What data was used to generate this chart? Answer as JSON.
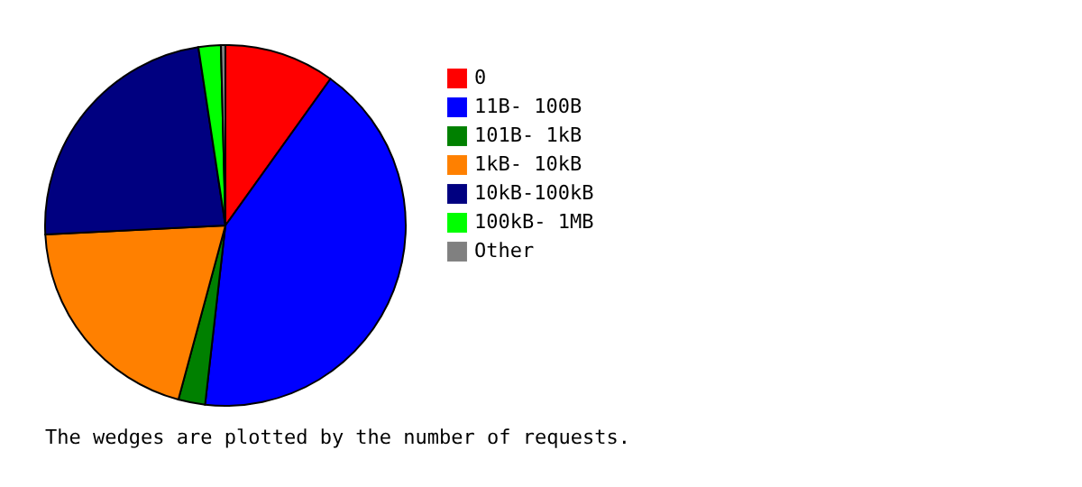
{
  "chart_data": {
    "type": "pie",
    "categories": [
      "     0",
      "11B- 100B",
      "101B-  1kB",
      " 1kB- 10kB",
      "10kB-100kB",
      "100kB-  1MB",
      "Other"
    ],
    "values": [
      9.9,
      41.9,
      2.4,
      20.0,
      23.4,
      2.0,
      0.4
    ],
    "colors": [
      "#ff0000",
      "#0000ff",
      "#008000",
      "#ff8000",
      "#000080",
      "#00ff00",
      "#808080"
    ],
    "legend": "right",
    "annotations": [
      "The wedges are plotted by the number of requests."
    ]
  }
}
